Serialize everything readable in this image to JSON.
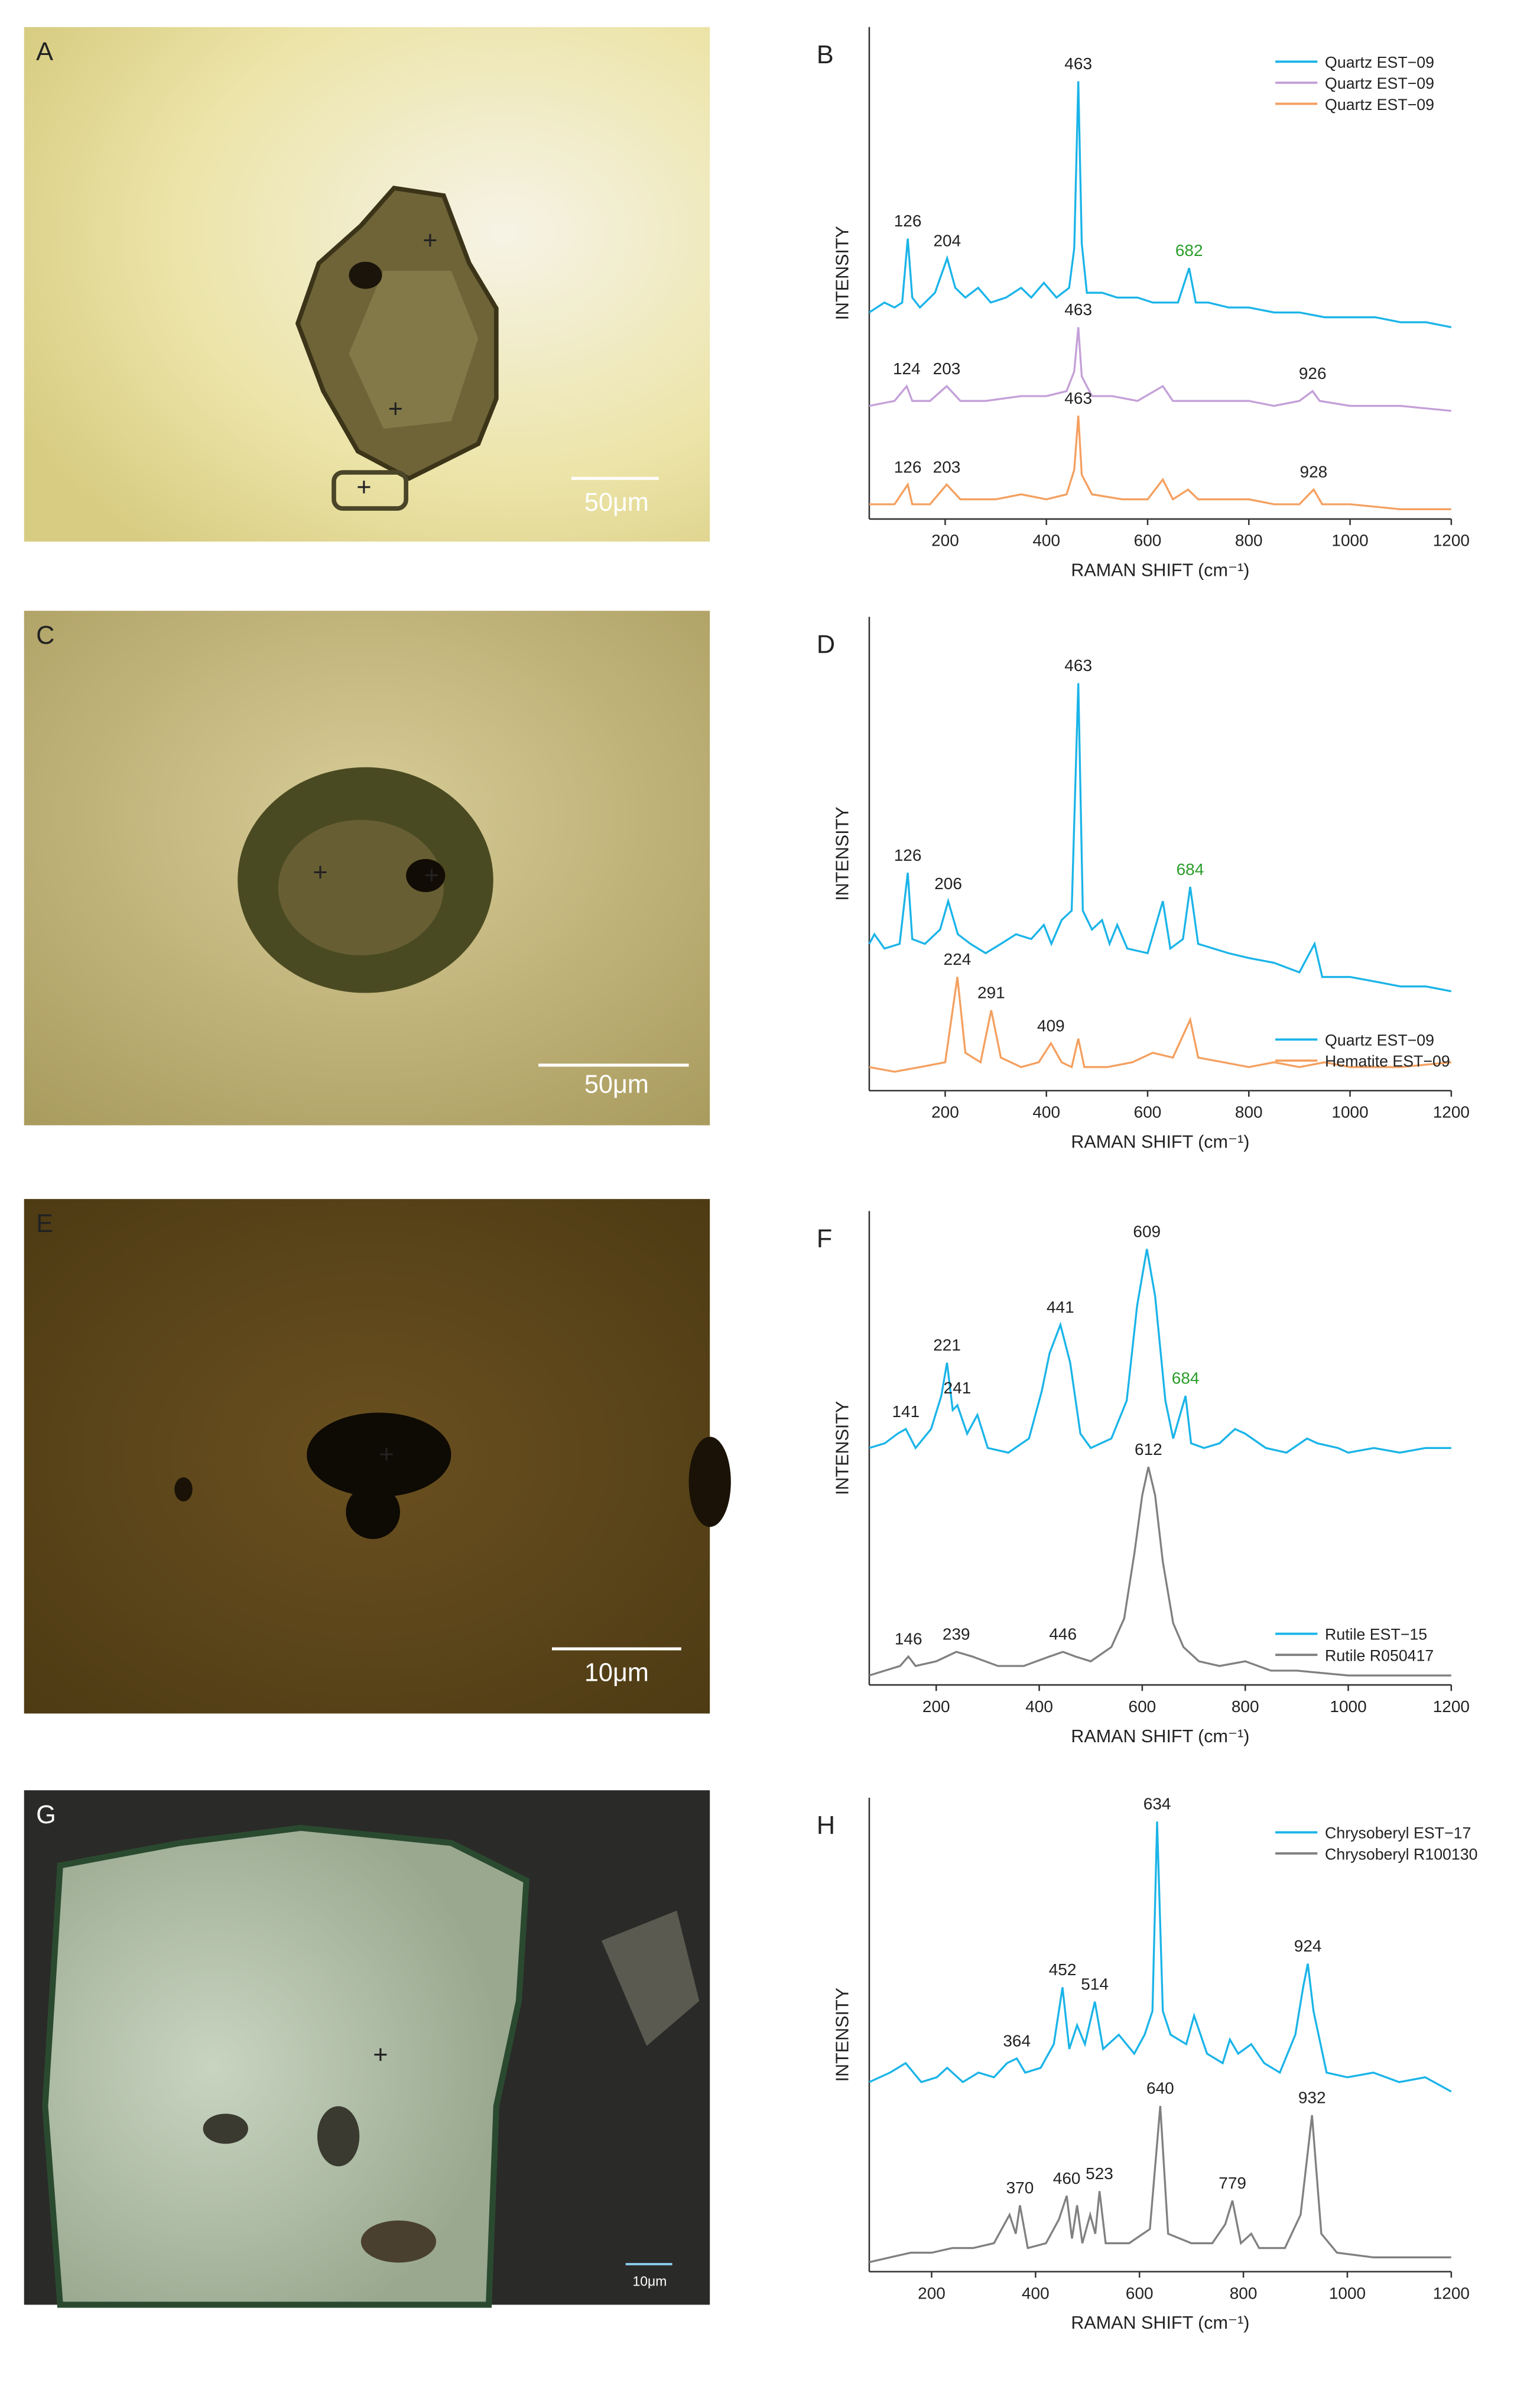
{
  "panels": [
    {
      "label": "A",
      "scale_bar": "50μm"
    },
    {
      "label": "C",
      "scale_bar": "50μm"
    },
    {
      "label": "E",
      "scale_bar": "10μm"
    },
    {
      "label": "G",
      "scale_bar": "10μm"
    }
  ],
  "chart_data": [
    {
      "type": "line",
      "title": "B",
      "x_label": "RAMAN SHIFT (cm⁻¹)",
      "y_label": "INTENSITY",
      "xlim": [
        50,
        1200
      ],
      "ylim": [
        0,
        100
      ],
      "xticks": [
        200,
        400,
        600,
        800,
        1000,
        1200
      ],
      "legend": "upper right",
      "series": [
        {
          "name": "Quartz  EST−09",
          "color": "#1ab4e8",
          "x": [
            50,
            80,
            100,
            115,
            126,
            135,
            150,
            180,
            204,
            220,
            240,
            265,
            290,
            320,
            350,
            370,
            395,
            420,
            445,
            455,
            463,
            470,
            480,
            510,
            540,
            580,
            610,
            640,
            660,
            682,
            695,
            720,
            760,
            800,
            850,
            900,
            950,
            1000,
            1050,
            1100,
            1150,
            1200
          ],
          "values": [
            42,
            44,
            43,
            44,
            57,
            45,
            43,
            46,
            53,
            47,
            45,
            47,
            44,
            45,
            47,
            45,
            48,
            45,
            47,
            55,
            89,
            56,
            46,
            46,
            45,
            45,
            44,
            44,
            44,
            51,
            44,
            44,
            43,
            43,
            42,
            42,
            41,
            41,
            41,
            40,
            40,
            39
          ],
          "peaks": [
            {
              "x": 126
            },
            {
              "x": 204
            },
            {
              "x": 463
            },
            {
              "x": 682,
              "color": "#2a9d2a"
            }
          ]
        },
        {
          "name": "Quartz  EST−09",
          "color": "#c4a0d8",
          "x": [
            50,
            100,
            124,
            135,
            170,
            203,
            230,
            280,
            350,
            400,
            440,
            455,
            463,
            470,
            490,
            530,
            580,
            630,
            650,
            700,
            750,
            800,
            850,
            900,
            926,
            940,
            1000,
            1100,
            1200
          ],
          "values": [
            23,
            24,
            27,
            24,
            24,
            27,
            24,
            24,
            25,
            25,
            26,
            30,
            39,
            29,
            25,
            25,
            24,
            27,
            24,
            24,
            24,
            24,
            23,
            24,
            26,
            24,
            23,
            23,
            22
          ],
          "peaks": [
            {
              "x": 124
            },
            {
              "x": 203
            },
            {
              "x": 463
            },
            {
              "x": 926
            }
          ]
        },
        {
          "name": "Quartz  EST−09",
          "color": "#f4a060",
          "x": [
            50,
            100,
            126,
            135,
            170,
            203,
            230,
            300,
            350,
            400,
            440,
            455,
            463,
            470,
            490,
            550,
            600,
            630,
            650,
            680,
            700,
            750,
            800,
            850,
            900,
            928,
            945,
            1000,
            1100,
            1200
          ],
          "values": [
            3,
            3,
            7,
            3,
            3,
            7,
            4,
            4,
            5,
            4,
            5,
            10,
            21,
            9,
            5,
            4,
            4,
            8,
            4,
            6,
            4,
            4,
            4,
            3,
            3,
            6,
            3,
            3,
            2,
            2
          ],
          "peaks": [
            {
              "x": 126
            },
            {
              "x": 203
            },
            {
              "x": 463
            },
            {
              "x": 928
            }
          ]
        }
      ]
    },
    {
      "type": "line",
      "title": "D",
      "x_label": "RAMAN SHIFT (cm⁻¹)",
      "y_label": "INTENSITY",
      "xlim": [
        50,
        1200
      ],
      "ylim": [
        0,
        100
      ],
      "xticks": [
        200,
        400,
        600,
        800,
        1000,
        1200
      ],
      "legend": "lower right",
      "series": [
        {
          "name": "Quartz EST−09",
          "color": "#1ab4e8",
          "x": [
            50,
            60,
            80,
            110,
            126,
            135,
            160,
            190,
            206,
            225,
            250,
            280,
            310,
            340,
            370,
            395,
            410,
            430,
            450,
            463,
            472,
            490,
            510,
            525,
            540,
            560,
            600,
            630,
            645,
            670,
            684,
            700,
            730,
            760,
            800,
            850,
            900,
            930,
            945,
            1000,
            1050,
            1100,
            1150,
            1200
          ],
          "values": [
            31,
            33,
            30,
            31,
            46,
            32,
            31,
            34,
            40,
            33,
            31,
            29,
            31,
            33,
            32,
            35,
            31,
            36,
            38,
            86,
            38,
            34,
            36,
            31,
            35,
            30,
            29,
            40,
            30,
            32,
            43,
            31,
            30,
            29,
            28,
            27,
            25,
            31,
            24,
            24,
            23,
            22,
            22,
            21
          ],
          "peaks": [
            {
              "x": 126
            },
            {
              "x": 206
            },
            {
              "x": 463
            },
            {
              "x": 684,
              "color": "#2a9d2a"
            }
          ]
        },
        {
          "name": "Hematite EST−09",
          "color": "#f4a060",
          "x": [
            50,
            100,
            150,
            200,
            224,
            240,
            270,
            291,
            310,
            350,
            385,
            409,
            430,
            450,
            463,
            475,
            520,
            570,
            610,
            650,
            684,
            700,
            750,
            800,
            850,
            900,
            950,
            1000,
            1100,
            1200
          ],
          "values": [
            5,
            4,
            5,
            6,
            24,
            8,
            6,
            17,
            7,
            5,
            6,
            10,
            6,
            5,
            11,
            5,
            5,
            6,
            8,
            7,
            15,
            7,
            6,
            5,
            6,
            5,
            6,
            5,
            5,
            6
          ],
          "peaks": [
            {
              "x": 224
            },
            {
              "x": 291
            },
            {
              "x": 409
            }
          ]
        }
      ]
    },
    {
      "type": "line",
      "title": "F",
      "x_label": "RAMAN SHIFT (cm⁻¹)",
      "y_label": "INTENSITY",
      "xlim": [
        70,
        1200
      ],
      "ylim": [
        0,
        100
      ],
      "xticks": [
        200,
        400,
        600,
        800,
        1000,
        1200
      ],
      "legend": "lower right",
      "series": [
        {
          "name": "Rutile EST−15",
          "color": "#1ab4e8",
          "x": [
            70,
            100,
            125,
            141,
            160,
            190,
            210,
            221,
            232,
            241,
            260,
            280,
            300,
            340,
            380,
            405,
            420,
            441,
            460,
            480,
            500,
            540,
            570,
            590,
            609,
            625,
            645,
            660,
            684,
            695,
            720,
            750,
            780,
            800,
            840,
            880,
            920,
            940,
            980,
            1000,
            1050,
            1100,
            1150,
            1200
          ],
          "values": [
            50,
            51,
            53,
            54,
            50,
            54,
            61,
            68,
            58,
            59,
            53,
            57,
            50,
            49,
            52,
            62,
            70,
            76,
            68,
            53,
            50,
            52,
            60,
            80,
            92,
            82,
            60,
            52,
            61,
            51,
            50,
            51,
            54,
            53,
            50,
            49,
            52,
            51,
            50,
            49,
            50,
            49,
            50,
            50
          ],
          "peaks": [
            {
              "x": 141
            },
            {
              "x": 221
            },
            {
              "x": 241
            },
            {
              "x": 441
            },
            {
              "x": 609
            },
            {
              "x": 684,
              "color": "#2a9d2a"
            }
          ]
        },
        {
          "name": "Rutile R050417",
          "color": "#808080",
          "x": [
            70,
            100,
            130,
            146,
            160,
            200,
            239,
            270,
            320,
            370,
            420,
            446,
            470,
            500,
            540,
            565,
            585,
            600,
            612,
            625,
            640,
            660,
            680,
            710,
            750,
            800,
            850,
            900,
            1000,
            1100,
            1200
          ],
          "values": [
            2,
            3,
            4,
            6,
            4,
            5,
            7,
            6,
            4,
            4,
            6,
            7,
            6,
            5,
            8,
            14,
            28,
            40,
            46,
            40,
            26,
            13,
            8,
            5,
            4,
            5,
            3,
            3,
            2,
            2,
            2
          ],
          "peaks": [
            {
              "x": 146
            },
            {
              "x": 239
            },
            {
              "x": 446
            },
            {
              "x": 612
            }
          ]
        }
      ]
    },
    {
      "type": "line",
      "title": "H",
      "x_label": "RAMAN SHIFT (cm⁻¹)",
      "y_label": "INTENSITY",
      "xlim": [
        80,
        1200
      ],
      "ylim": [
        0,
        100
      ],
      "xticks": [
        200,
        400,
        600,
        800,
        1000,
        1200
      ],
      "legend": "upper right",
      "series": [
        {
          "name": "Chrysoberyl EST−17",
          "color": "#1ab4e8",
          "x": [
            80,
            120,
            150,
            180,
            210,
            230,
            260,
            290,
            320,
            345,
            364,
            380,
            410,
            435,
            452,
            465,
            480,
            495,
            514,
            530,
            560,
            590,
            610,
            625,
            634,
            645,
            660,
            690,
            705,
            730,
            760,
            774,
            790,
            815,
            840,
            870,
            900,
            915,
            924,
            935,
            960,
            1000,
            1050,
            1100,
            1150,
            1200
          ],
          "values": [
            40,
            42,
            44,
            40,
            41,
            43,
            40,
            42,
            41,
            44,
            45,
            42,
            43,
            48,
            60,
            47,
            52,
            48,
            57,
            47,
            50,
            46,
            50,
            55,
            95,
            55,
            50,
            48,
            54,
            46,
            44,
            49,
            46,
            48,
            44,
            42,
            50,
            60,
            65,
            55,
            42,
            41,
            42,
            40,
            41,
            38
          ],
          "peaks": [
            {
              "x": 364
            },
            {
              "x": 452
            },
            {
              "x": 514
            },
            {
              "x": 634
            },
            {
              "x": 924
            }
          ]
        },
        {
          "name": "Chrysoberyl R100130",
          "color": "#808080",
          "x": [
            80,
            120,
            160,
            200,
            240,
            280,
            320,
            350,
            362,
            370,
            385,
            420,
            445,
            460,
            470,
            480,
            490,
            505,
            515,
            523,
            535,
            580,
            620,
            640,
            655,
            700,
            740,
            765,
            779,
            795,
            815,
            830,
            880,
            910,
            932,
            950,
            980,
            1050,
            1100,
            1200
          ],
          "values": [
            2,
            3,
            4,
            4,
            5,
            5,
            6,
            12,
            8,
            14,
            5,
            6,
            11,
            16,
            7,
            14,
            6,
            12,
            8,
            17,
            6,
            6,
            9,
            35,
            8,
            6,
            6,
            10,
            15,
            6,
            8,
            5,
            5,
            12,
            33,
            8,
            4,
            3,
            3,
            3
          ],
          "peaks": [
            {
              "x": 370
            },
            {
              "x": 460
            },
            {
              "x": 523
            },
            {
              "x": 640
            },
            {
              "x": 779
            },
            {
              "x": 932
            }
          ]
        }
      ]
    }
  ]
}
